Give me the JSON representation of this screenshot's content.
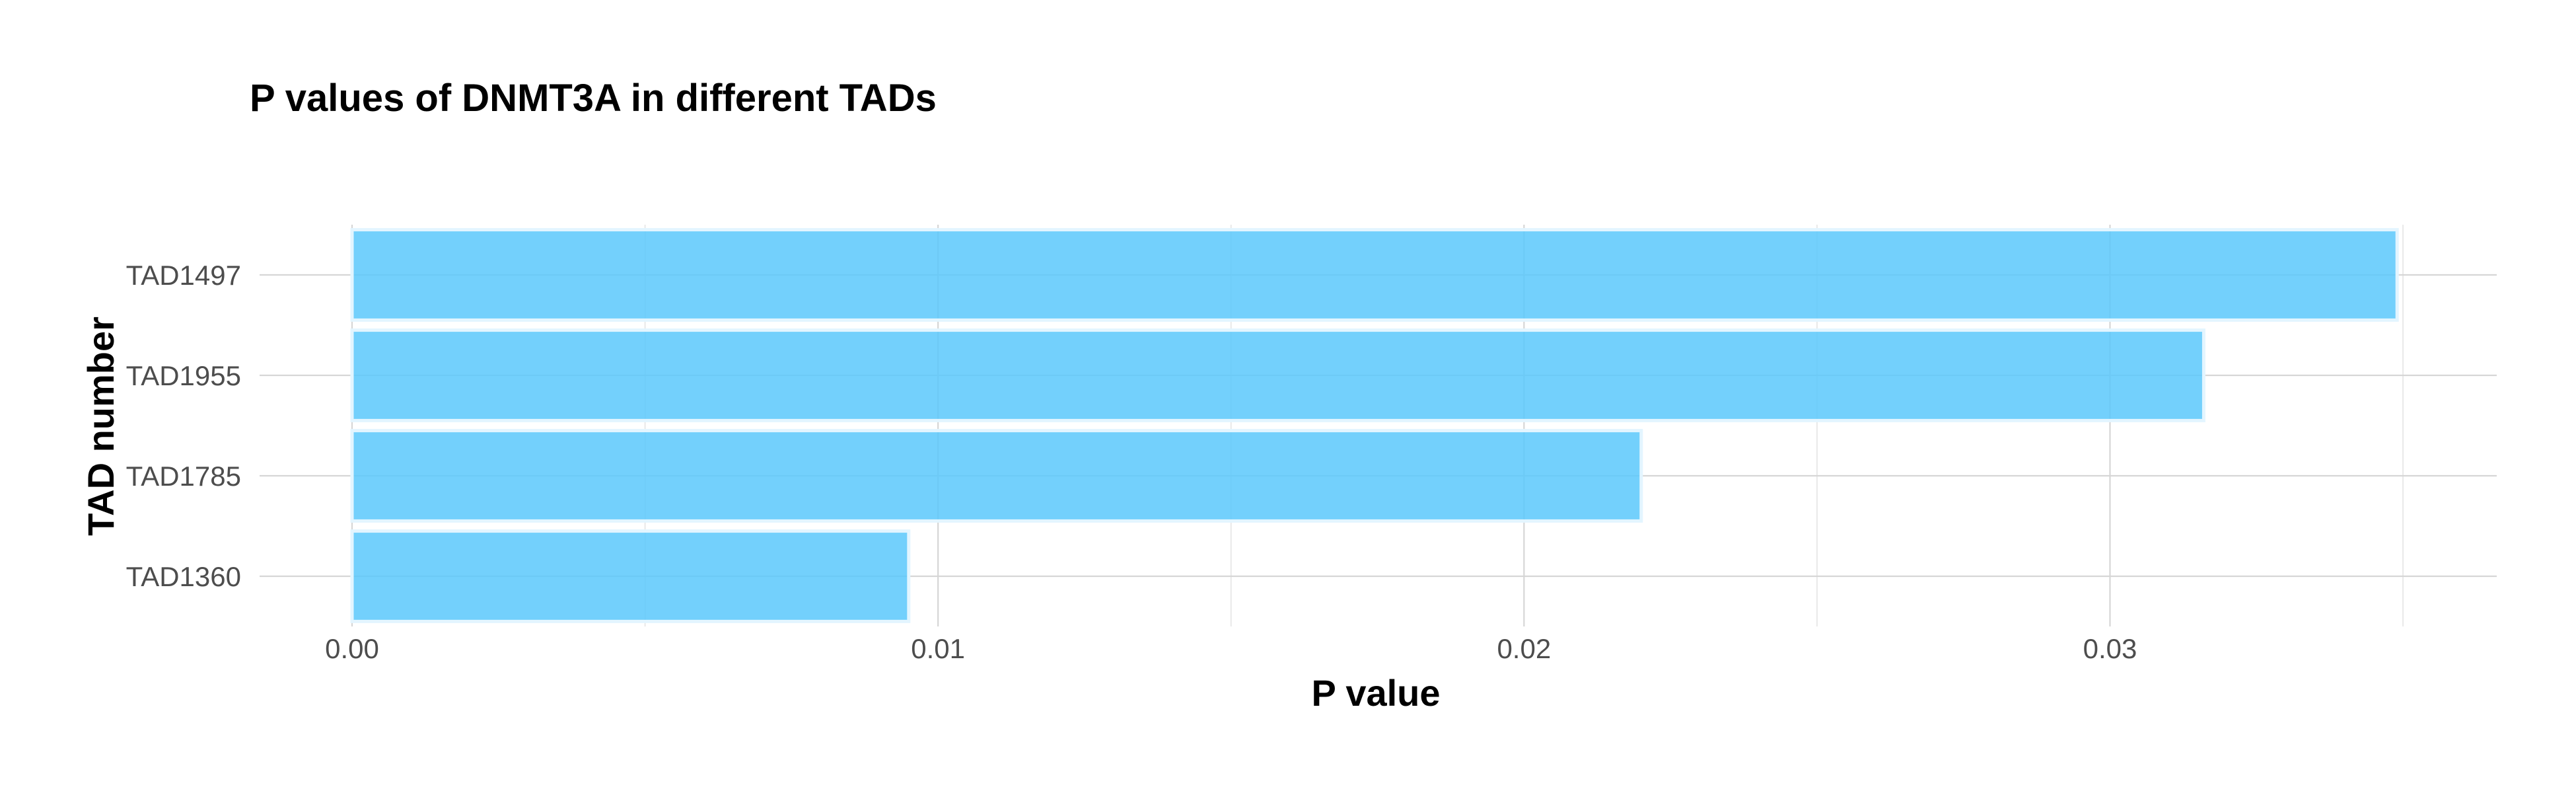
{
  "chart_data": {
    "type": "bar",
    "orientation": "horizontal",
    "title": "P values of DNMT3A in different TADs",
    "xlabel": "P value",
    "ylabel": "TAD number",
    "categories": [
      "TAD1360",
      "TAD1785",
      "TAD1955",
      "TAD1497"
    ],
    "values": [
      0.0095,
      0.022,
      0.0316,
      0.0349
    ],
    "xlim": [
      0,
      0.0366
    ],
    "xticks": [
      "0.00",
      "0.01",
      "0.02",
      "0.03"
    ],
    "xtick_values": [
      0,
      0.01,
      0.02,
      0.03
    ],
    "minor_xticks": [
      0.005,
      0.015,
      0.025,
      0.035
    ],
    "grid": true,
    "legend": "none",
    "bar_color": "#5bc8fb"
  }
}
